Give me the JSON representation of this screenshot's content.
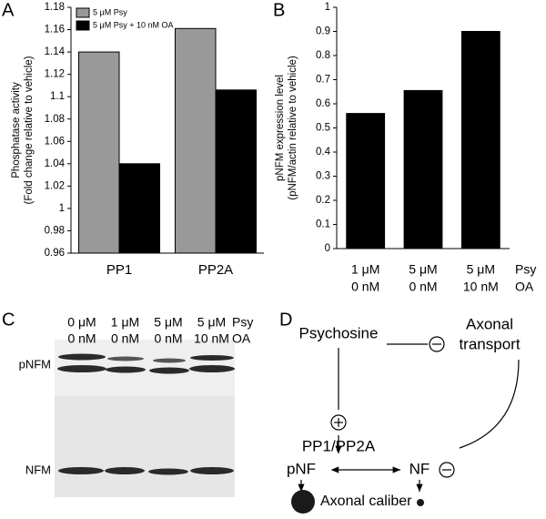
{
  "chart_data": [
    {
      "type": "bar",
      "label": "A",
      "ylabel": [
        "Phosphatase activity",
        "(Fold change relative to vehicle)"
      ],
      "categories": [
        "PP1",
        "PP2A"
      ],
      "series": [
        {
          "name": "5 μM Psy",
          "color": "#999999",
          "values": [
            1.14,
            1.161
          ]
        },
        {
          "name": "5 μM Psy + 10 nM OA",
          "color": "#000000",
          "values": [
            1.04,
            1.106
          ]
        }
      ],
      "ylim": [
        0.96,
        1.18
      ],
      "yticks": [
        0.96,
        0.98,
        1,
        1.02,
        1.04,
        1.06,
        1.08,
        1.1,
        1.12,
        1.14,
        1.16,
        1.18
      ],
      "legend": "upper-left"
    },
    {
      "type": "bar",
      "label": "B",
      "ylabel": [
        "pNFM expression level",
        "(pNFM/actin relative to vehicle)"
      ],
      "categories": [
        [
          "1 μM",
          "0 nM"
        ],
        [
          "5 μM",
          "0 nM"
        ],
        [
          "5 μM",
          "10 nM"
        ]
      ],
      "row_labels": [
        "Psy",
        "OA"
      ],
      "values": [
        0.56,
        0.655,
        0.9
      ],
      "color": "#000000",
      "ylim": [
        0,
        1
      ],
      "yticks": [
        0,
        0.1,
        0.2,
        0.3,
        0.4,
        0.5,
        0.6,
        0.7,
        0.8,
        0.9,
        1
      ]
    }
  ],
  "blot": {
    "label": "C",
    "columns": [
      [
        "0 μM",
        "0 nM"
      ],
      [
        "1 μM",
        "0 nM"
      ],
      [
        "5 μM",
        "0 nM"
      ],
      [
        "5 μM",
        "10 nM"
      ]
    ],
    "row_labels": [
      "Psy",
      "OA"
    ],
    "rows": [
      "pNFM",
      "NFM"
    ]
  },
  "diagram": {
    "label": "D",
    "psychosine": "Psychosine",
    "transport": [
      "Axonal",
      "transport"
    ],
    "phosphatase": "PP1/PP2A",
    "pnf": "pNF",
    "nf": "NF",
    "caliber": "Axonal caliber"
  }
}
